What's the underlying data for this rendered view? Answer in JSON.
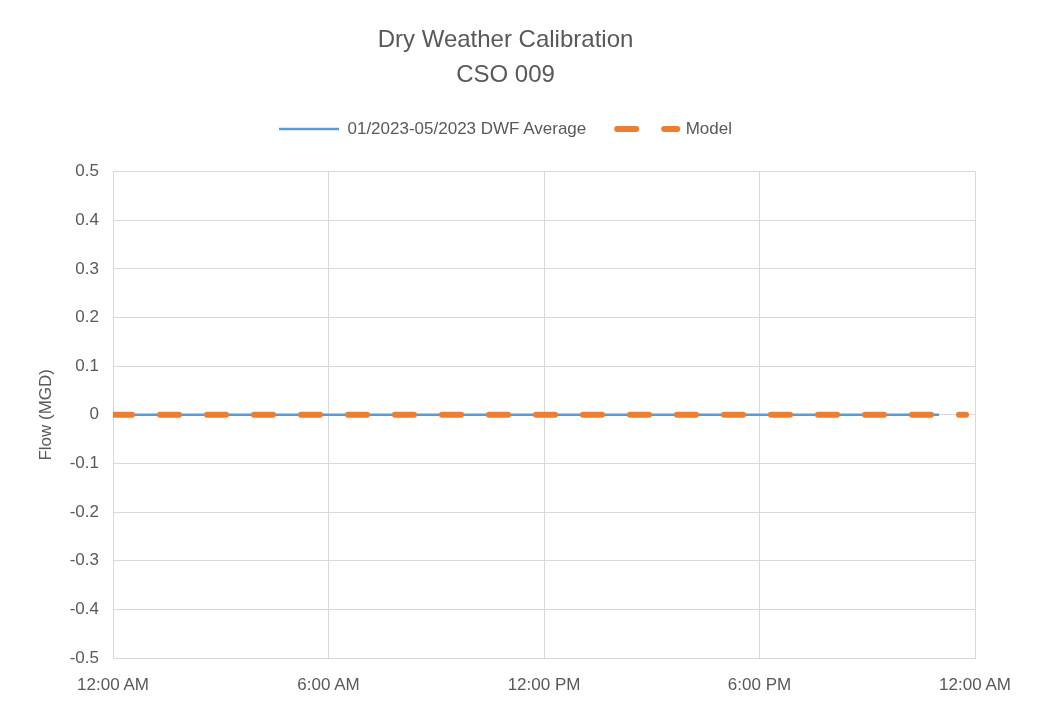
{
  "chart_data": {
    "type": "line",
    "title": "Dry Weather Calibration",
    "subtitle": "CSO 009",
    "ylabel": "Flow (MGD)",
    "xlim": [
      0,
      24
    ],
    "xticks": [
      {
        "value": 0,
        "label": "12:00 AM"
      },
      {
        "value": 6,
        "label": "6:00 AM"
      },
      {
        "value": 12,
        "label": "12:00 PM"
      },
      {
        "value": 18,
        "label": "6:00 PM"
      },
      {
        "value": 24,
        "label": "12:00 AM"
      }
    ],
    "ylim": [
      -0.5,
      0.5
    ],
    "yticks": [
      -0.5,
      -0.4,
      -0.3,
      -0.2,
      -0.1,
      0,
      0.1,
      0.2,
      0.3,
      0.4,
      0.5
    ],
    "grid": true,
    "legend": "top",
    "series": [
      {
        "name": "01/2023-05/2023 DWF Average",
        "color": "#5b9bd5",
        "line_style": "solid",
        "x": [
          0,
          1,
          2,
          3,
          4,
          5,
          6,
          7,
          8,
          9,
          10,
          11,
          12,
          13,
          14,
          15,
          16,
          17,
          18,
          19,
          20,
          21,
          22,
          23
        ],
        "values": [
          0,
          0,
          0,
          0,
          0,
          0,
          0,
          0,
          0,
          0,
          0,
          0,
          0,
          0,
          0,
          0,
          0,
          0,
          0,
          0,
          0,
          0,
          0,
          0
        ]
      },
      {
        "name": "Model",
        "color": "#ed7d31",
        "line_style": "dashed",
        "x": [
          0,
          23.75
        ],
        "values": [
          0,
          0
        ]
      }
    ]
  }
}
